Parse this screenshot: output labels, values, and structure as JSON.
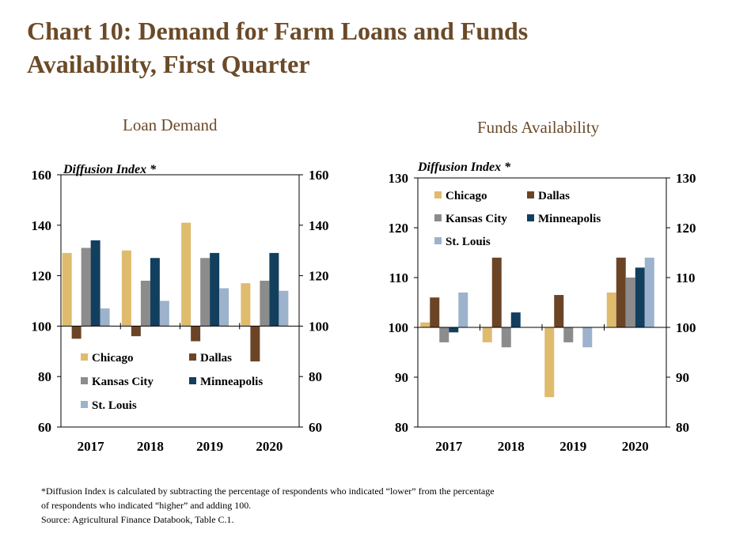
{
  "title_line1": "Chart 10: Demand for Farm Loans and Funds",
  "title_line2": "Availability, First Quarter",
  "footnote": {
    "line1": "*Diffusion Index is calculated by subtracting the percentage of respondents who indicated “lower” from the percentage",
    "line2": "of respondents who indicated “higher” and adding 100.",
    "line3": "Source: Agricultural Finance Databook, Table C.1."
  },
  "colors": {
    "Chicago": "#dfbb6e",
    "Dallas": "#6b4426",
    "Kansas City": "#8c8c8c",
    "Minneapolis": "#123f5e",
    "St. Louis": "#9db2cc"
  },
  "chart_data": [
    {
      "type": "bar",
      "title": "Loan Demand",
      "ylabel": "Diffusion Index *",
      "categories": [
        "2017",
        "2018",
        "2019",
        "2020"
      ],
      "ylim": [
        60,
        160
      ],
      "yticks": [
        60,
        80,
        100,
        120,
        140,
        160
      ],
      "baseline": 100,
      "legend_position": "lower-left",
      "series": [
        {
          "name": "Chicago",
          "values": [
            129,
            130,
            141,
            117
          ]
        },
        {
          "name": "Dallas",
          "values": [
            95,
            96,
            94,
            86
          ]
        },
        {
          "name": "Kansas City",
          "values": [
            131,
            118,
            127,
            118
          ]
        },
        {
          "name": "Minneapolis",
          "values": [
            134,
            127,
            129,
            129
          ]
        },
        {
          "name": "St. Louis",
          "values": [
            107,
            110,
            115,
            114
          ]
        }
      ]
    },
    {
      "type": "bar",
      "title": "Funds Availability",
      "ylabel": "Diffusion Index *",
      "categories": [
        "2017",
        "2018",
        "2019",
        "2020"
      ],
      "ylim": [
        80,
        130
      ],
      "yticks": [
        80,
        90,
        100,
        110,
        120,
        130
      ],
      "baseline": 100,
      "legend_position": "top-left",
      "series": [
        {
          "name": "Chicago",
          "values": [
            101,
            97,
            86,
            107
          ]
        },
        {
          "name": "Dallas",
          "values": [
            106,
            114,
            106.5,
            114
          ]
        },
        {
          "name": "Kansas City",
          "values": [
            97,
            96,
            97,
            110
          ]
        },
        {
          "name": "Minneapolis",
          "values": [
            99,
            103,
            100,
            112
          ]
        },
        {
          "name": "St. Louis",
          "values": [
            107,
            100,
            96,
            114
          ]
        }
      ]
    }
  ]
}
